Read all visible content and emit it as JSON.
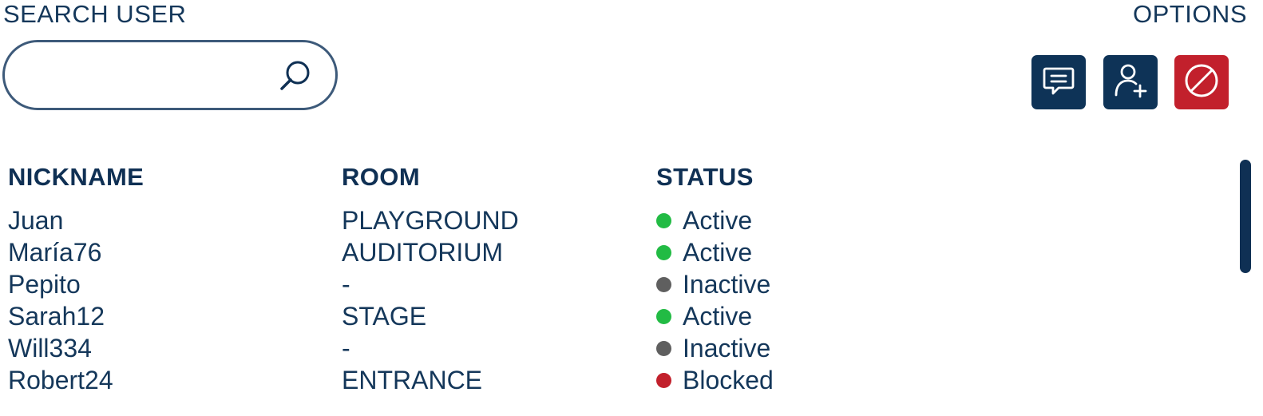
{
  "search": {
    "label": "SEARCH USER",
    "value": "",
    "placeholder": ""
  },
  "options": {
    "label": "OPTIONS",
    "buttons": [
      {
        "name": "message",
        "icon": "message-icon",
        "color": "#0e3357"
      },
      {
        "name": "add-user",
        "icon": "add-user-icon",
        "color": "#0e3357"
      },
      {
        "name": "block",
        "icon": "block-icon",
        "color": "#c2202c"
      }
    ]
  },
  "table": {
    "headers": {
      "nickname": "NICKNAME",
      "room": "ROOM",
      "status": "STATUS"
    },
    "rows": [
      {
        "nickname": "Juan",
        "room": "PLAYGROUND",
        "status": "Active",
        "status_color": "#22bb44"
      },
      {
        "nickname": "María76",
        "room": "AUDITORIUM",
        "status": "Active",
        "status_color": "#22bb44"
      },
      {
        "nickname": "Pepito",
        "room": "-",
        "status": "Inactive",
        "status_color": "#5f5f5f"
      },
      {
        "nickname": "Sarah12",
        "room": "STAGE",
        "status": "Active",
        "status_color": "#22bb44"
      },
      {
        "nickname": "Will334",
        "room": "-",
        "status": "Inactive",
        "status_color": "#5f5f5f"
      },
      {
        "nickname": "Robert24",
        "room": "ENTRANCE",
        "status": "Blocked",
        "status_color": "#c2202c"
      }
    ]
  }
}
